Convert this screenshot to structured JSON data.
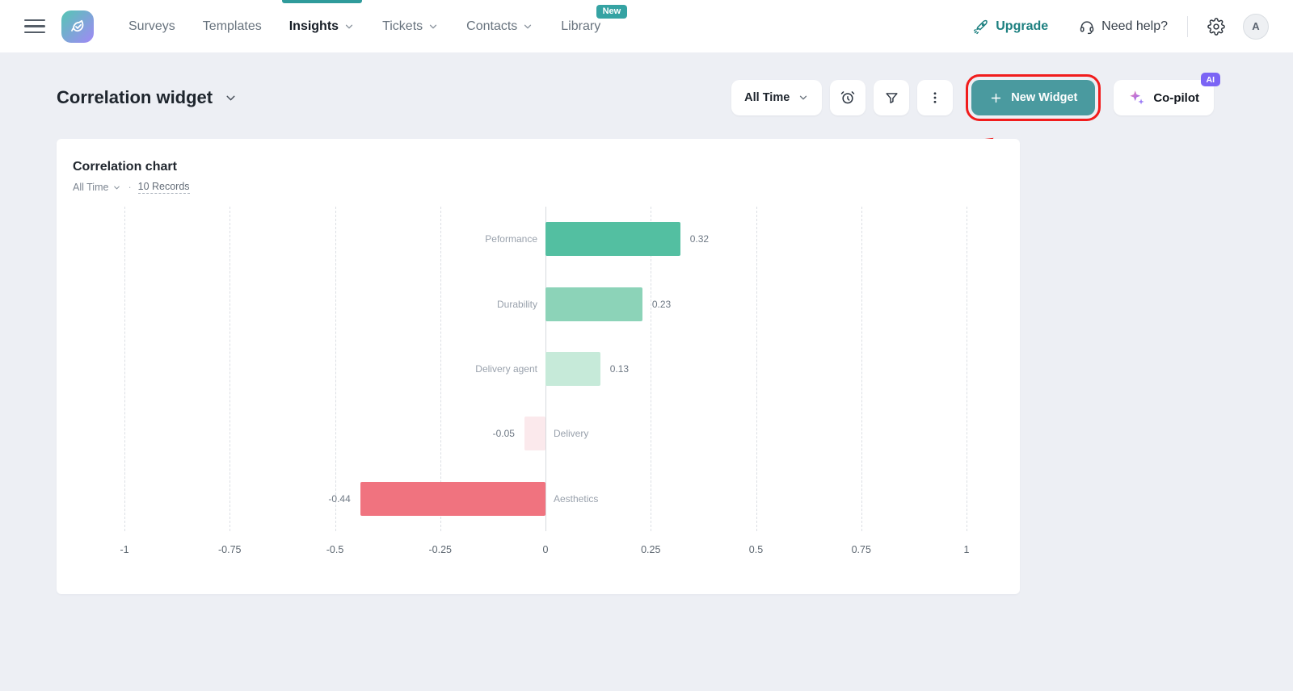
{
  "nav": {
    "items": [
      {
        "label": "Surveys"
      },
      {
        "label": "Templates"
      },
      {
        "label": "Insights"
      },
      {
        "label": "Tickets"
      },
      {
        "label": "Contacts"
      },
      {
        "label": "Library",
        "badge": "New"
      }
    ],
    "upgrade_label": "Upgrade",
    "help_label": "Need help?",
    "avatar_letter": "A"
  },
  "header": {
    "title": "Correlation widget",
    "time_filter": "All Time",
    "new_widget_label": "New Widget",
    "copilot_label": "Co-pilot",
    "copilot_badge": "AI"
  },
  "widget": {
    "title": "Correlation chart",
    "time_filter": "All Time",
    "separator": "·",
    "records_label": "10 Records"
  },
  "chart_data": {
    "type": "bar",
    "orientation": "horizontal",
    "title": "Correlation chart",
    "categories": [
      "Peformance",
      "Durability",
      "Delivery agent",
      "Delivery",
      "Aesthetics"
    ],
    "values": [
      0.32,
      0.23,
      0.13,
      -0.05,
      -0.44
    ],
    "bar_colors": [
      "#53bfa1",
      "#8cd3b8",
      "#c6ead9",
      "#fbe9ec",
      "#f0737f"
    ],
    "xticks": [
      -1,
      -0.75,
      -0.5,
      -0.25,
      0,
      0.25,
      0.5,
      0.75,
      1
    ],
    "xlim": [
      -1,
      1
    ],
    "grid": "vertical-dashed",
    "value_labels": true,
    "legend": false
  },
  "colors": {
    "accent_teal": "#2f9b9b",
    "button_teal": "#4a9a9f",
    "annotation_red": "#f11c1c",
    "ai_badge_purple": "#7b64f5",
    "new_badge_teal": "#35a3a3",
    "page_background": "#edeff4"
  }
}
